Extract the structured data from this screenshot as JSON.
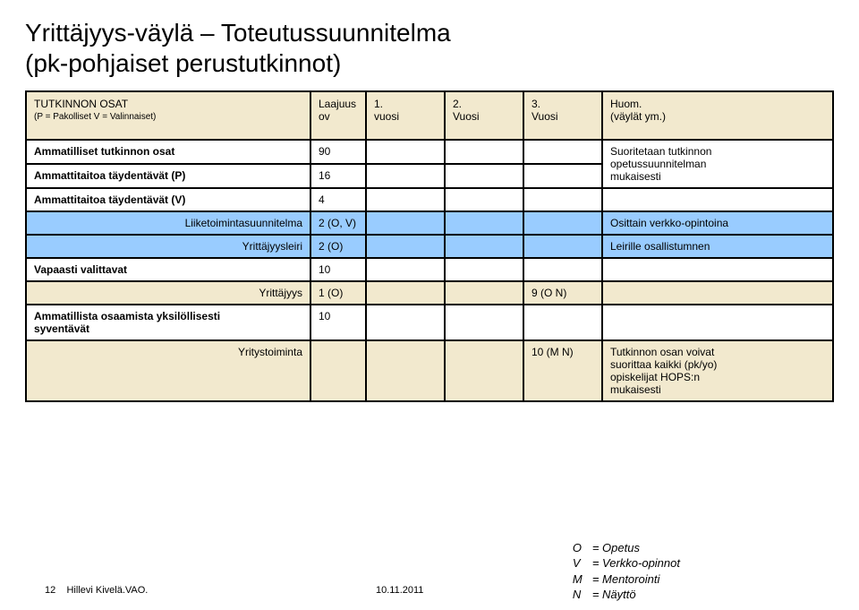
{
  "title_line1": "Yrittäjyys-väylä – Toteutussuunnitelma",
  "title_line2": "(pk-pohjaiset perustutkinnot)",
  "header": {
    "c0_l1": "TUTKINNON OSAT",
    "c0_l2": "(P = Pakolliset V = Valinnaiset)",
    "c1_l1": "Laajuus",
    "c1_l2": "ov",
    "c2_l1": "1.",
    "c2_l2": "vuosi",
    "c3_l1": "2.",
    "c3_l2": "Vuosi",
    "c4_l1": "3.",
    "c4_l2": "Vuosi",
    "c5_l1": "Huom.",
    "c5_l2": "(väylät ym.)"
  },
  "sectA": {
    "r1_label": "Ammatilliset tutkinnon osat",
    "r1_val": "90",
    "r2_label": "Ammattitaitoa täydentävät (P)",
    "r2_val": "16",
    "notes_l1": "Suoritetaan tutkinnon",
    "notes_l2": "opetussuunnitelman",
    "notes_l3": "mukaisesti"
  },
  "sectB": {
    "label": "Ammattitaitoa täydentävät (V)",
    "val": "4"
  },
  "blue1": {
    "label": "Liiketoimintasuunnitelma",
    "val": "2 (O, V)",
    "notes": "Osittain verkko-opintoina"
  },
  "blue2": {
    "label": "Yrittäjyysleiri",
    "val": "2 (O)",
    "notes": "Leirille osallistumnen"
  },
  "sectC": {
    "label": "Vapaasti valittavat",
    "val": "10"
  },
  "yellow1": {
    "label": "Yrittäjyys",
    "val": "1 (O)",
    "y3": "9 (O    N)"
  },
  "sectD": {
    "label_l1": "Ammatillista osaamista yksilöllisesti",
    "label_l2": "syventävät",
    "val": "10"
  },
  "yellow2": {
    "label": "Yritystoiminta",
    "y3": "10  (M    N)",
    "notes_l1": "Tutkinnon osan voivat",
    "notes_l2": "suorittaa kaikki (pk/yo)",
    "notes_l3": "opiskelijat HOPS:n",
    "notes_l4": "mukaisesti"
  },
  "legend": {
    "o": "= Opetus",
    "v": "= Verkko-opinnot",
    "m": "= Mentorointi",
    "n": "= Näyttö",
    "ok": "O",
    "vk": "V",
    "mk": "M",
    "nk": "N"
  },
  "footer": {
    "page": "12",
    "author": "Hillevi Kivelä.VAO.",
    "date": "10.11.2011"
  },
  "colors": {
    "header_bg": "#f2e9ce",
    "blue_bg": "#99ccff",
    "yellow_bg": "#f2e9ce",
    "border": "#000000",
    "page_bg": "#ffffff"
  }
}
